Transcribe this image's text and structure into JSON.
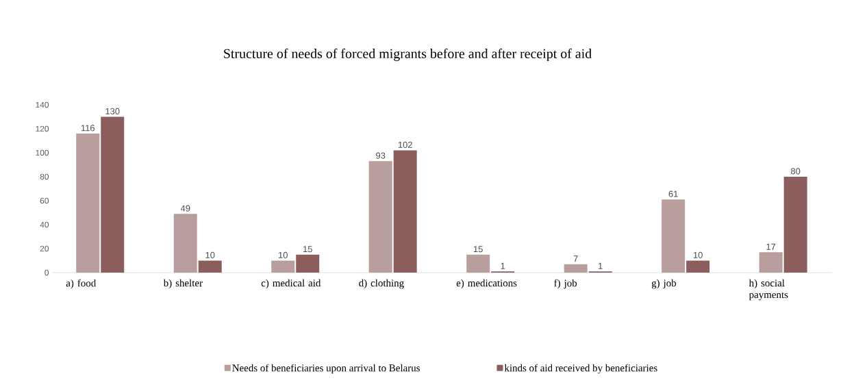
{
  "chart_data": {
    "type": "bar",
    "title": "Structure of needs of forced migrants before and after receipt of aid",
    "categories": [
      "a) food",
      "b) shelter",
      "c) medical aid",
      "d) clothing",
      "e) medications",
      "f) job",
      "g) job",
      "h) social payments"
    ],
    "series": [
      {
        "name": "Needs of beneficiaries upon arrival to Belarus",
        "color": "#b89e9d",
        "values": [
          116,
          49,
          10,
          93,
          15,
          7,
          61,
          17
        ]
      },
      {
        "name": "kinds of aid received by beneficiaries",
        "color": "#8b5e5d",
        "values": [
          130,
          10,
          15,
          102,
          1,
          1,
          10,
          80
        ]
      }
    ],
    "ylim": [
      0,
      140
    ],
    "yticks": [
      0,
      20,
      40,
      60,
      80,
      100,
      120,
      140
    ],
    "data_labels": true,
    "legend": "bottom",
    "grid": false
  }
}
